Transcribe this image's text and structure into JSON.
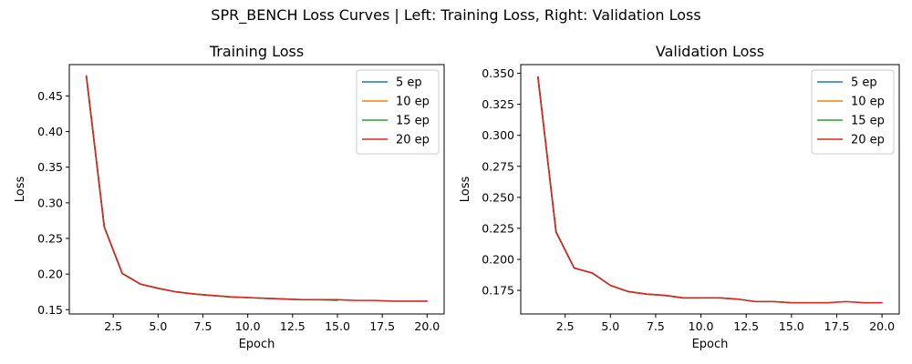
{
  "figure": {
    "title": "SPR_BENCH Loss Curves | Left: Training Loss, Right: Validation Loss"
  },
  "chart_data": [
    {
      "type": "line",
      "title": "Training Loss",
      "xlabel": "Epoch",
      "ylabel": "Loss",
      "xlim": [
        0.05,
        20.95
      ],
      "ylim": [
        0.144,
        0.494
      ],
      "xticks": [
        2.5,
        5.0,
        7.5,
        10.0,
        12.5,
        15.0,
        17.5,
        20.0
      ],
      "xtick_labels": [
        "2.5",
        "5.0",
        "7.5",
        "10.0",
        "12.5",
        "15.0",
        "17.5",
        "20.0"
      ],
      "yticks": [
        0.15,
        0.2,
        0.25,
        0.3,
        0.35,
        0.4,
        0.45
      ],
      "ytick_labels": [
        "0.15",
        "0.20",
        "0.25",
        "0.30",
        "0.35",
        "0.40",
        "0.45"
      ],
      "grid": false,
      "legend_position": "top-right",
      "series": [
        {
          "name": "5 ep",
          "color": "#1f77b4",
          "x": [
            1,
            2,
            3,
            4,
            5
          ],
          "y": [
            0.478,
            0.266,
            0.201,
            0.186,
            0.18
          ]
        },
        {
          "name": "10 ep",
          "color": "#ff7f0e",
          "x": [
            1,
            2,
            3,
            4,
            5,
            6,
            7,
            8,
            9,
            10
          ],
          "y": [
            0.478,
            0.266,
            0.201,
            0.186,
            0.18,
            0.175,
            0.172,
            0.17,
            0.168,
            0.167
          ]
        },
        {
          "name": "15 ep",
          "color": "#2ca02c",
          "x": [
            1,
            2,
            3,
            4,
            5,
            6,
            7,
            8,
            9,
            10,
            11,
            12,
            13,
            14,
            15
          ],
          "y": [
            0.478,
            0.266,
            0.201,
            0.186,
            0.18,
            0.175,
            0.172,
            0.17,
            0.168,
            0.167,
            0.166,
            0.165,
            0.164,
            0.164,
            0.163
          ]
        },
        {
          "name": "20 ep",
          "color": "#d62728",
          "x": [
            1,
            2,
            3,
            4,
            5,
            6,
            7,
            8,
            9,
            10,
            11,
            12,
            13,
            14,
            15,
            16,
            17,
            18,
            19,
            20
          ],
          "y": [
            0.478,
            0.266,
            0.201,
            0.186,
            0.18,
            0.175,
            0.172,
            0.17,
            0.168,
            0.167,
            0.166,
            0.165,
            0.164,
            0.164,
            0.164,
            0.163,
            0.163,
            0.162,
            0.162,
            0.162
          ]
        }
      ]
    },
    {
      "type": "line",
      "title": "Validation Loss",
      "xlabel": "Epoch",
      "ylabel": "Loss",
      "xlim": [
        0.05,
        20.95
      ],
      "ylim": [
        0.156,
        0.357
      ],
      "xticks": [
        2.5,
        5.0,
        7.5,
        10.0,
        12.5,
        15.0,
        17.5,
        20.0
      ],
      "xtick_labels": [
        "2.5",
        "5.0",
        "7.5",
        "10.0",
        "12.5",
        "15.0",
        "17.5",
        "20.0"
      ],
      "yticks": [
        0.175,
        0.2,
        0.225,
        0.25,
        0.275,
        0.3,
        0.325,
        0.35
      ],
      "ytick_labels": [
        "0.175",
        "0.200",
        "0.225",
        "0.250",
        "0.275",
        "0.300",
        "0.325",
        "0.350"
      ],
      "grid": false,
      "legend_position": "top-right",
      "series": [
        {
          "name": "5 ep",
          "color": "#1f77b4",
          "x": [
            1,
            2,
            3,
            4,
            5
          ],
          "y": [
            0.347,
            0.222,
            0.193,
            0.189,
            0.179
          ]
        },
        {
          "name": "10 ep",
          "color": "#ff7f0e",
          "x": [
            1,
            2,
            3,
            4,
            5,
            6,
            7,
            8,
            9,
            10
          ],
          "y": [
            0.347,
            0.222,
            0.193,
            0.189,
            0.179,
            0.174,
            0.172,
            0.171,
            0.169,
            0.169
          ]
        },
        {
          "name": "15 ep",
          "color": "#2ca02c",
          "x": [
            1,
            2,
            3,
            4,
            5,
            6,
            7,
            8,
            9,
            10,
            11,
            12,
            13,
            14,
            15
          ],
          "y": [
            0.347,
            0.222,
            0.193,
            0.189,
            0.179,
            0.174,
            0.172,
            0.171,
            0.169,
            0.169,
            0.169,
            0.168,
            0.166,
            0.166,
            0.165
          ]
        },
        {
          "name": "20 ep",
          "color": "#d62728",
          "x": [
            1,
            2,
            3,
            4,
            5,
            6,
            7,
            8,
            9,
            10,
            11,
            12,
            13,
            14,
            15,
            16,
            17,
            18,
            19,
            20
          ],
          "y": [
            0.347,
            0.222,
            0.193,
            0.189,
            0.179,
            0.174,
            0.172,
            0.171,
            0.169,
            0.169,
            0.169,
            0.168,
            0.166,
            0.166,
            0.165,
            0.165,
            0.165,
            0.166,
            0.165,
            0.165
          ]
        }
      ]
    }
  ]
}
